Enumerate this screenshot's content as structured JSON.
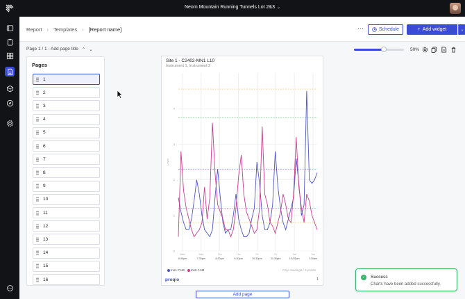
{
  "topbar": {
    "project_name": "Neom Mountain Running Tunnels Lot 2&3"
  },
  "sidebar": {
    "items": [
      "layers-icon",
      "clipboard-icon",
      "dashboard-icon",
      "report-icon",
      "cube-icon",
      "compass-icon",
      "settings-icon",
      "chat-icon"
    ]
  },
  "breadcrumb": {
    "root": "Report",
    "section": "Templates",
    "current": "[Report name]"
  },
  "toolbar": {
    "more": "···",
    "schedule_label": "Schedule",
    "add_widget_label": "Add widget"
  },
  "pagebar": {
    "label": "Page 1 / 1 - Add page title"
  },
  "zoom": {
    "value_text": "50%",
    "fraction": 0.6
  },
  "pages_panel": {
    "title": "Pages",
    "items": [
      "1",
      "2",
      "3",
      "4",
      "5",
      "6",
      "7",
      "8",
      "9",
      "10",
      "11",
      "12",
      "13",
      "14",
      "15",
      "16"
    ]
  },
  "report_page": {
    "chart_title": "Site 1 - C2402-MN1 L10",
    "chart_subtitle": "Instrument 1, Instrument 2",
    "csv_note": "CSV readings / 3 points",
    "footer_logo": "proqio",
    "page_number": "1",
    "add_page_label": "Add page"
  },
  "chart_data": {
    "type": "line",
    "ylabel": "Level",
    "xlabels": [
      "8:30pm",
      "7:30pm",
      "8:30pm",
      "9:30pm",
      "10:30pm",
      "11:30pm",
      "10:30pm",
      "7:30am"
    ],
    "xlabels_top": [
      "Wed",
      "Wed",
      "Thu",
      "Thu",
      "Fri",
      "Fri",
      "Sat",
      "Sat"
    ],
    "ytick_labels": [
      "0",
      "1",
      "2",
      "3",
      "4"
    ],
    "ylim": [
      0,
      5
    ],
    "series": [
      {
        "name": "Ins1-7AM",
        "color": "#4a55c9",
        "values": [
          1.5,
          1.1,
          0.8,
          0.6,
          0.6,
          0.9,
          1.4,
          2.0,
          1.6,
          1.0,
          0.6,
          0.5,
          0.4,
          0.6,
          1.5,
          2.3,
          1.5,
          0.8,
          0.5,
          0.6,
          0.6,
          1.0,
          1.6,
          0.9,
          0.6,
          0.4,
          0.4,
          0.5,
          0.9,
          1.2,
          2.5,
          1.9,
          1.0,
          0.6,
          0.6,
          0.8,
          1.3,
          2.8,
          1.8,
          1.2,
          0.8,
          0.6,
          0.9,
          1.2,
          1.5,
          2.6,
          1.9,
          1.0,
          1.3,
          4.5,
          2.0,
          1.9,
          2.0,
          2.2
        ]
      },
      {
        "name": "Ins2-7AM",
        "color": "#d13b8c",
        "values": [
          0.4,
          2.8,
          1.7,
          1.2,
          0.9,
          0.6,
          0.4,
          0.5,
          0.6,
          0.8,
          1.8,
          0.9,
          1.5,
          3.6,
          2.2,
          1.3,
          1.1,
          0.9,
          0.6,
          0.6,
          0.4,
          0.6,
          1.2,
          2.1,
          2.7,
          1.6,
          1.1,
          0.9,
          0.7,
          0.5,
          0.6,
          1.2,
          3.5,
          1.6,
          1.3,
          0.8,
          0.7,
          0.5,
          0.8,
          1.1,
          1.6,
          1.3,
          0.9,
          0.8,
          1.6,
          3.2,
          1.8,
          1.2,
          0.8,
          1.6,
          1.4,
          1.0,
          0.8,
          0.6
        ]
      }
    ]
  },
  "toast": {
    "title": "Success",
    "message": "Charts have been added successfully."
  }
}
